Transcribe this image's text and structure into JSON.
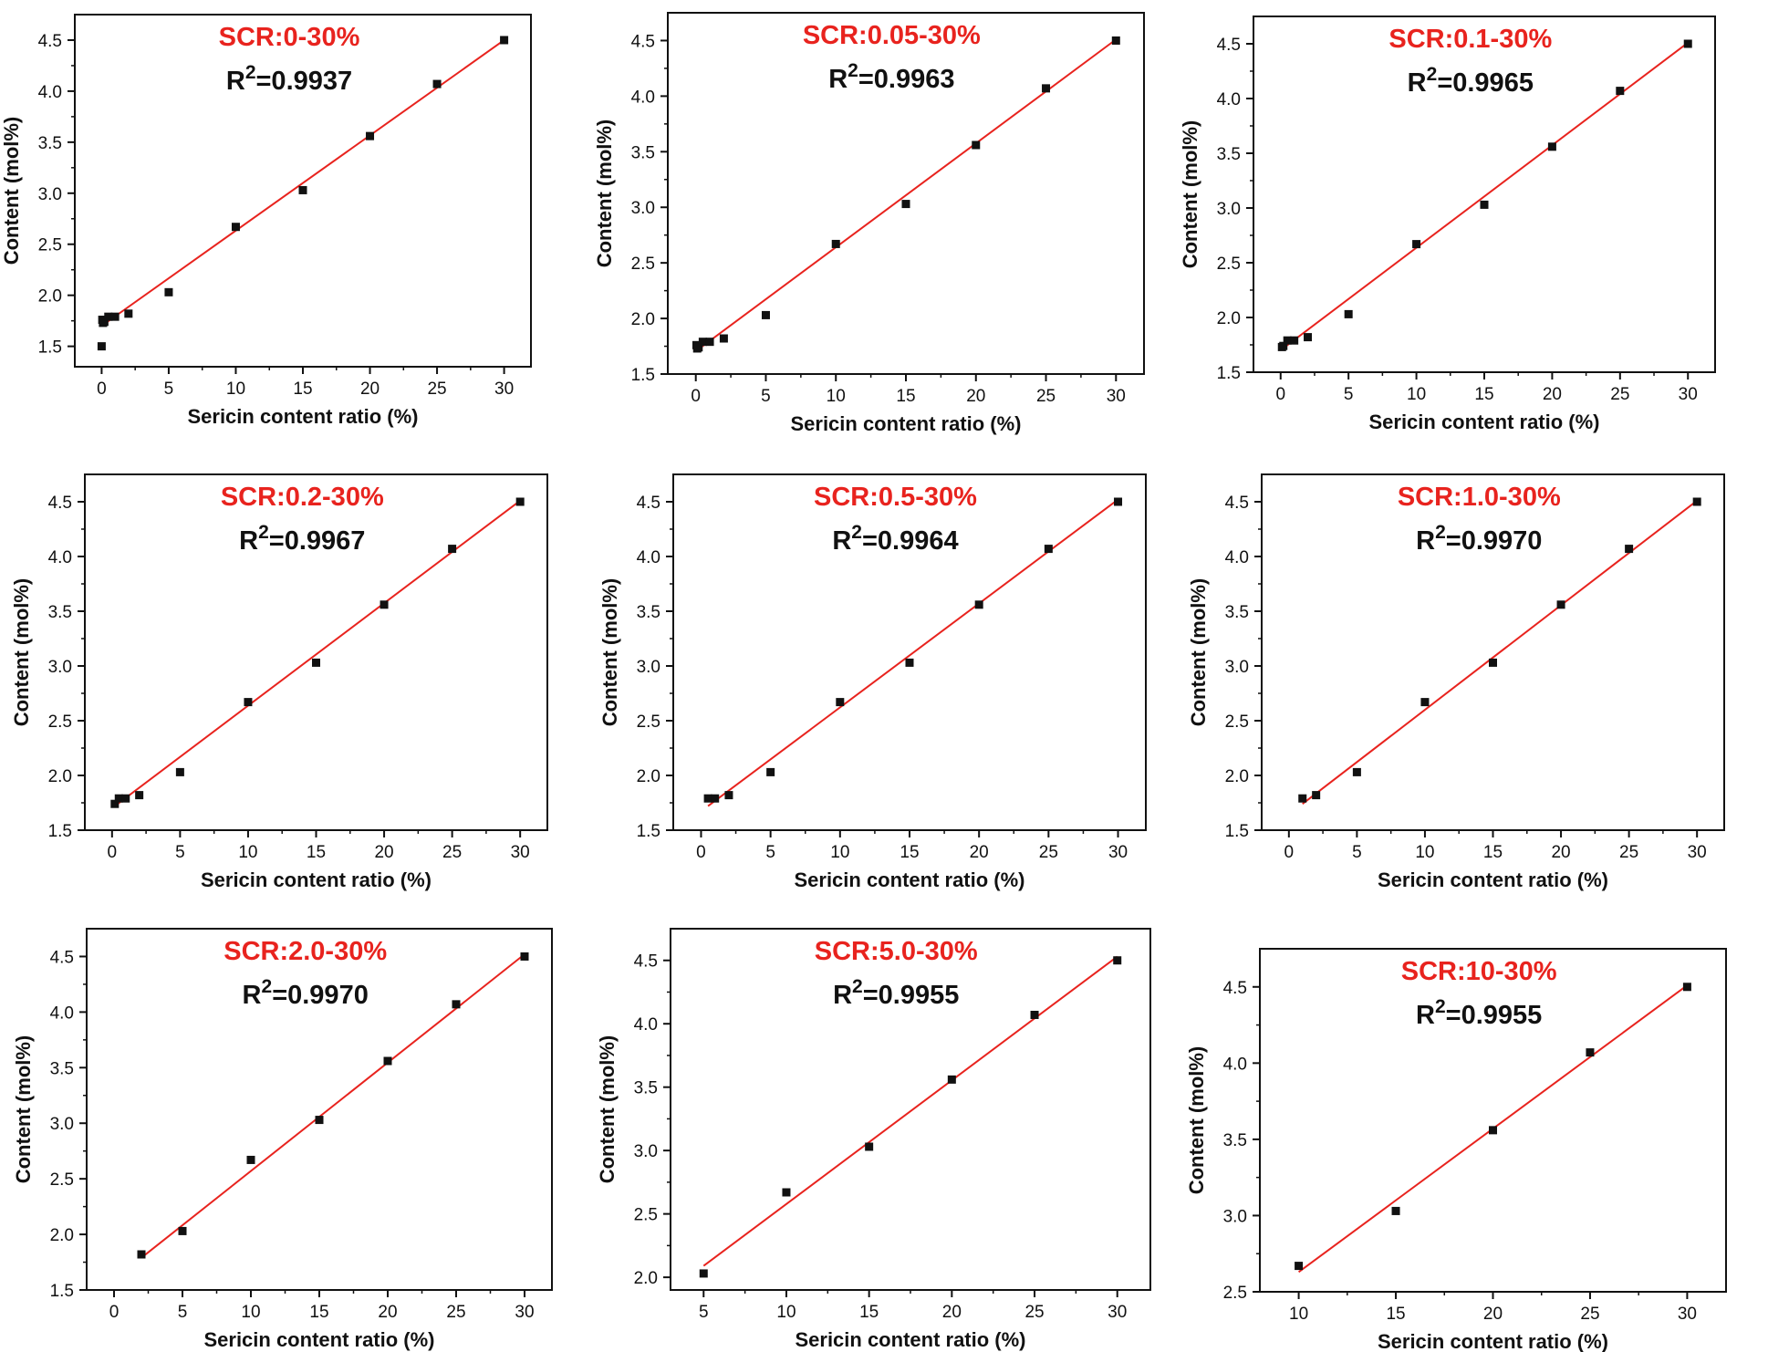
{
  "figure": {
    "accent_color": "#e8231e",
    "point_color": "#111111"
  },
  "chart_data": [
    {
      "type": "scatter",
      "title": "SCR:0-30%",
      "r2_label": "=0.9937",
      "xlabel": "Sericin content ratio (%)",
      "ylabel": "Content (mol%)",
      "xlim": [
        -2,
        32
      ],
      "ylim": [
        1.3,
        4.75
      ],
      "xticks": [
        0,
        5,
        10,
        15,
        20,
        25,
        30
      ],
      "yticks": [
        1.5,
        2.0,
        2.5,
        3.0,
        3.5,
        4.0,
        4.5
      ],
      "x": [
        0,
        0.05,
        0.1,
        0.2,
        0.5,
        1.0,
        2.0,
        5,
        10,
        15,
        20,
        25,
        30
      ],
      "y": [
        1.5,
        1.76,
        1.73,
        1.74,
        1.79,
        1.79,
        1.82,
        2.03,
        2.67,
        3.03,
        3.56,
        4.07,
        4.5
      ],
      "fit": {
        "x": [
          0,
          30
        ],
        "y": [
          1.7,
          4.5
        ]
      }
    },
    {
      "type": "scatter",
      "title": "SCR:0.05-30%",
      "r2_label": "=0.9963",
      "xlabel": "Sericin content ratio (%)",
      "ylabel": "Content (mol%)",
      "xlim": [
        -2,
        32
      ],
      "ylim": [
        1.5,
        4.75
      ],
      "xticks": [
        0,
        5,
        10,
        15,
        20,
        25,
        30
      ],
      "yticks": [
        1.5,
        2.0,
        2.5,
        3.0,
        3.5,
        4.0,
        4.5
      ],
      "x": [
        0.05,
        0.1,
        0.2,
        0.5,
        1.0,
        2.0,
        5,
        10,
        15,
        20,
        25,
        30
      ],
      "y": [
        1.76,
        1.73,
        1.74,
        1.79,
        1.79,
        1.82,
        2.03,
        2.67,
        3.03,
        3.56,
        4.07,
        4.5
      ],
      "fit": {
        "x": [
          0.05,
          30
        ],
        "y": [
          1.71,
          4.51
        ]
      }
    },
    {
      "type": "scatter",
      "title": "SCR:0.1-30%",
      "r2_label": "=0.9965",
      "xlabel": "Sericin content ratio (%)",
      "ylabel": "Content (mol%)",
      "xlim": [
        -2,
        32
      ],
      "ylim": [
        1.5,
        4.75
      ],
      "xticks": [
        0,
        5,
        10,
        15,
        20,
        25,
        30
      ],
      "yticks": [
        1.5,
        2.0,
        2.5,
        3.0,
        3.5,
        4.0,
        4.5
      ],
      "x": [
        0.1,
        0.2,
        0.5,
        1.0,
        2.0,
        5,
        10,
        15,
        20,
        25,
        30
      ],
      "y": [
        1.73,
        1.74,
        1.79,
        1.79,
        1.82,
        2.03,
        2.67,
        3.03,
        3.56,
        4.07,
        4.5
      ],
      "fit": {
        "x": [
          0.1,
          30
        ],
        "y": [
          1.71,
          4.51
        ]
      }
    },
    {
      "type": "scatter",
      "title": "SCR:0.2-30%",
      "r2_label": "=0.9967",
      "xlabel": "Sericin content ratio (%)",
      "ylabel": "Content (mol%)",
      "xlim": [
        -2,
        32
      ],
      "ylim": [
        1.5,
        4.75
      ],
      "xticks": [
        0,
        5,
        10,
        15,
        20,
        25,
        30
      ],
      "yticks": [
        1.5,
        2.0,
        2.5,
        3.0,
        3.5,
        4.0,
        4.5
      ],
      "x": [
        0.2,
        0.5,
        1.0,
        2.0,
        5,
        10,
        15,
        20,
        25,
        30
      ],
      "y": [
        1.74,
        1.79,
        1.79,
        1.82,
        2.03,
        2.67,
        3.03,
        3.56,
        4.07,
        4.5
      ],
      "fit": {
        "x": [
          0.2,
          30
        ],
        "y": [
          1.72,
          4.51
        ]
      }
    },
    {
      "type": "scatter",
      "title": "SCR:0.5-30%",
      "r2_label": "=0.9964",
      "xlabel": "Sericin content ratio (%)",
      "ylabel": "Content (mol%)",
      "xlim": [
        -2,
        32
      ],
      "ylim": [
        1.5,
        4.75
      ],
      "xticks": [
        0,
        5,
        10,
        15,
        20,
        25,
        30
      ],
      "yticks": [
        1.5,
        2.0,
        2.5,
        3.0,
        3.5,
        4.0,
        4.5
      ],
      "x": [
        0.5,
        1.0,
        2.0,
        5,
        10,
        15,
        20,
        25,
        30
      ],
      "y": [
        1.79,
        1.79,
        1.82,
        2.03,
        2.67,
        3.03,
        3.56,
        4.07,
        4.5
      ],
      "fit": {
        "x": [
          0.5,
          30
        ],
        "y": [
          1.72,
          4.52
        ]
      }
    },
    {
      "type": "scatter",
      "title": "SCR:1.0-30%",
      "r2_label": "=0.9970",
      "xlabel": "Sericin content ratio (%)",
      "ylabel": "Content (mol%)",
      "xlim": [
        -2,
        32
      ],
      "ylim": [
        1.5,
        4.75
      ],
      "xticks": [
        0,
        5,
        10,
        15,
        20,
        25,
        30
      ],
      "yticks": [
        1.5,
        2.0,
        2.5,
        3.0,
        3.5,
        4.0,
        4.5
      ],
      "x": [
        1.0,
        2.0,
        5,
        10,
        15,
        20,
        25,
        30
      ],
      "y": [
        1.79,
        1.82,
        2.03,
        2.67,
        3.03,
        3.56,
        4.07,
        4.5
      ],
      "fit": {
        "x": [
          1.0,
          30
        ],
        "y": [
          1.74,
          4.51
        ]
      }
    },
    {
      "type": "scatter",
      "title": "SCR:2.0-30%",
      "r2_label": "=0.9970",
      "xlabel": "Sericin content ratio (%)",
      "ylabel": "Content (mol%)",
      "xlim": [
        -2,
        32
      ],
      "ylim": [
        1.5,
        4.75
      ],
      "xticks": [
        0,
        5,
        10,
        15,
        20,
        25,
        30
      ],
      "yticks": [
        1.5,
        2.0,
        2.5,
        3.0,
        3.5,
        4.0,
        4.5
      ],
      "x": [
        2.0,
        5,
        10,
        15,
        20,
        25,
        30
      ],
      "y": [
        1.82,
        2.03,
        2.67,
        3.03,
        3.56,
        4.07,
        4.5
      ],
      "fit": {
        "x": [
          2.0,
          30
        ],
        "y": [
          1.79,
          4.52
        ]
      }
    },
    {
      "type": "scatter",
      "title": "SCR:5.0-30%",
      "r2_label": "=0.9955",
      "xlabel": "Sericin content ratio (%)",
      "ylabel": "Content (mol%)",
      "xlim": [
        3,
        32
      ],
      "ylim": [
        1.9,
        4.75
      ],
      "xticks": [
        5,
        10,
        15,
        20,
        25,
        30
      ],
      "yticks": [
        2.0,
        2.5,
        3.0,
        3.5,
        4.0,
        4.5
      ],
      "x": [
        5,
        10,
        15,
        20,
        25,
        30
      ],
      "y": [
        2.03,
        2.67,
        3.03,
        3.56,
        4.07,
        4.5
      ],
      "fit": {
        "x": [
          5,
          30
        ],
        "y": [
          2.09,
          4.53
        ]
      }
    },
    {
      "type": "scatter",
      "title": "SCR:10-30%",
      "r2_label": "=0.9955",
      "xlabel": "Sericin content ratio (%)",
      "ylabel": "Content (mol%)",
      "xlim": [
        8,
        32
      ],
      "ylim": [
        2.5,
        4.75
      ],
      "xticks": [
        10,
        15,
        20,
        25,
        30
      ],
      "yticks": [
        2.5,
        3.0,
        3.5,
        4.0,
        4.5
      ],
      "x": [
        10,
        15,
        20,
        25,
        30
      ],
      "y": [
        2.67,
        3.03,
        3.56,
        4.07,
        4.5
      ],
      "fit": {
        "x": [
          10,
          30
        ],
        "y": [
          2.63,
          4.51
        ]
      }
    }
  ]
}
